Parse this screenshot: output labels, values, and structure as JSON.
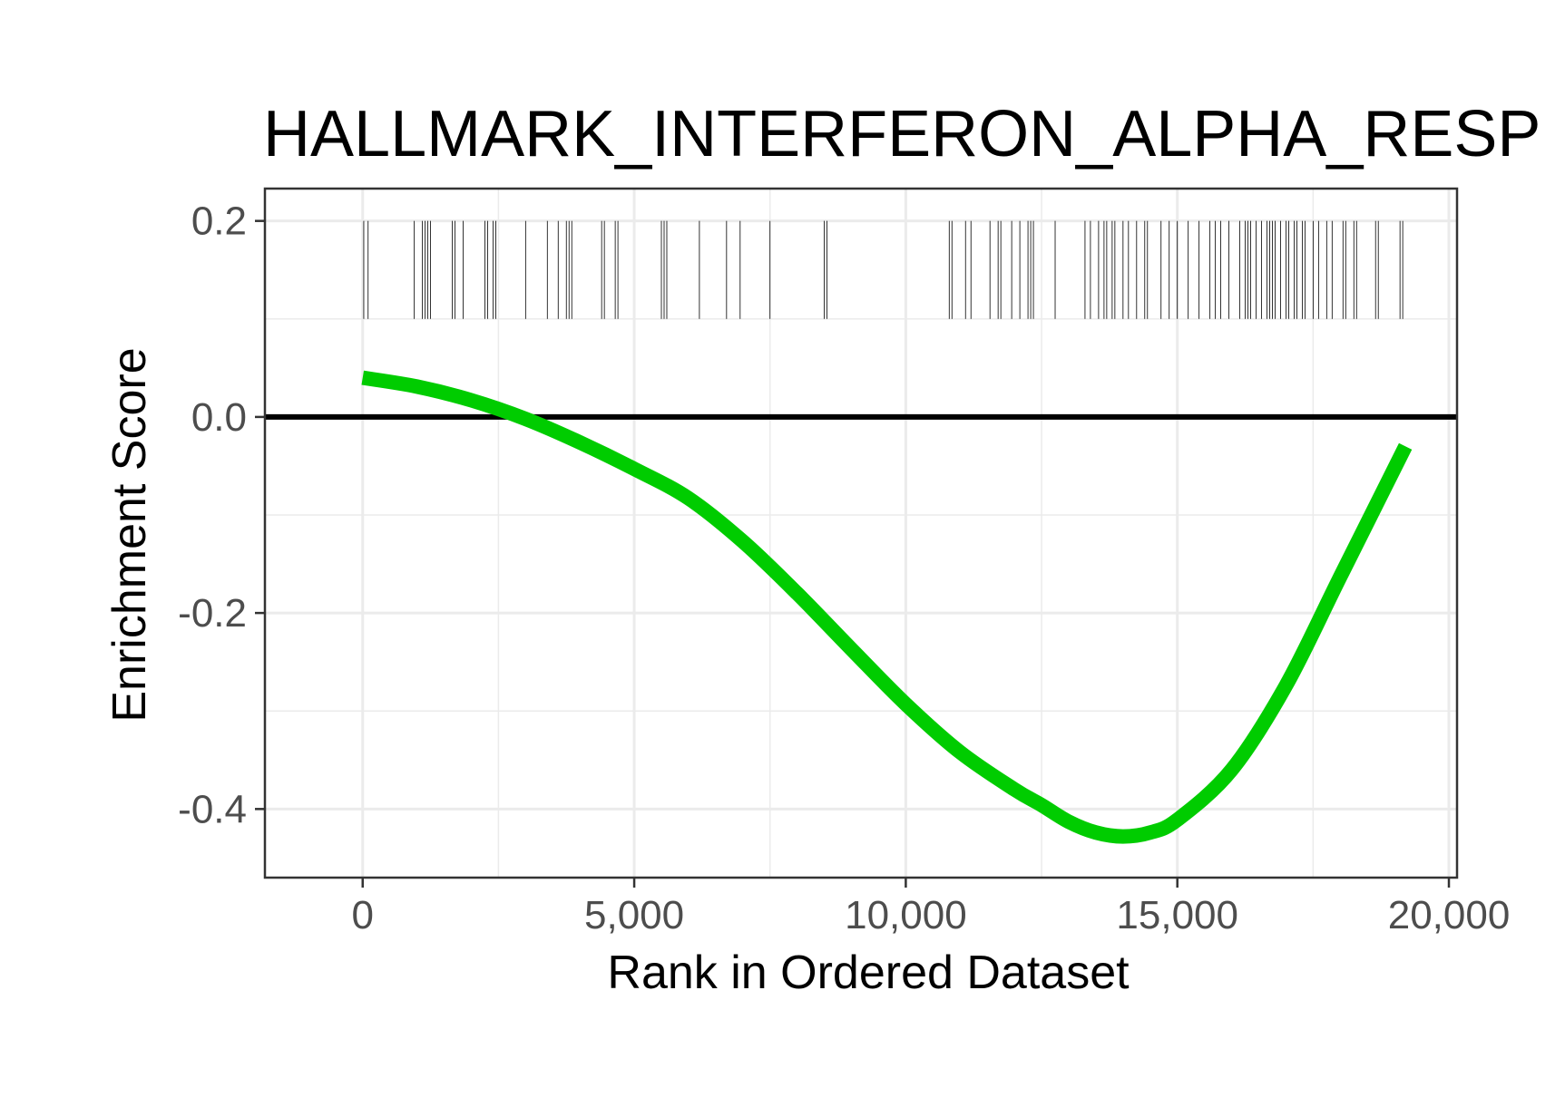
{
  "chart_data": {
    "type": "line",
    "title": "HALLMARK_INTERFERON_ALPHA_RESP",
    "xlabel": "Rank in Ordered Dataset",
    "ylabel": "Enrichment Score",
    "xlim": [
      -1800,
      20150
    ],
    "ylim": [
      -0.47,
      0.233
    ],
    "x_ticks": [
      0,
      5000,
      10000,
      15000,
      20000
    ],
    "x_tick_labels": [
      "0",
      "5,000",
      "10,000",
      "15,000",
      "20,000"
    ],
    "y_ticks": [
      -0.4,
      -0.2,
      0.0,
      0.2
    ],
    "y_tick_labels": [
      "-0.4",
      "-0.2",
      "0.0",
      "0.2"
    ],
    "y_minor_ticks": [
      -0.3,
      -0.1,
      0.1
    ],
    "x_minor_ticks": [
      2500,
      7500,
      12500,
      17500
    ],
    "grid": true,
    "reference_line": {
      "y": 0,
      "color": "#000000"
    },
    "series": [
      {
        "color": "#00cc00",
        "x": [
          0,
          1000,
          2000,
          3000,
          4000,
          5000,
          6000,
          7000,
          8000,
          9000,
          10000,
          11000,
          12000,
          12500,
          13000,
          13500,
          14000,
          14500,
          15000,
          16000,
          17000,
          18000,
          19200
        ],
        "y": [
          0.04,
          0.031,
          0.017,
          -0.002,
          -0.026,
          -0.053,
          -0.083,
          -0.127,
          -0.18,
          -0.237,
          -0.293,
          -0.342,
          -0.38,
          -0.396,
          -0.413,
          -0.424,
          -0.428,
          -0.424,
          -0.411,
          -0.36,
          -0.274,
          -0.163,
          -0.03
        ]
      }
    ],
    "gene_hits": {
      "y_range": [
        0.1,
        0.2
      ],
      "color": "#000000",
      "positions": [
        20,
        100,
        950,
        1100,
        1150,
        1200,
        1250,
        1650,
        1700,
        1850,
        2250,
        2300,
        2400,
        2450,
        3000,
        3400,
        3600,
        3750,
        3800,
        3850,
        4400,
        4450,
        4650,
        4700,
        5500,
        5550,
        5600,
        6200,
        6700,
        6950,
        7500,
        8500,
        8550,
        10800,
        10850,
        11100,
        11200,
        11550,
        11700,
        11750,
        11950,
        12100,
        12250,
        12300,
        12350,
        12750,
        13300,
        13400,
        13550,
        13650,
        13700,
        13800,
        13850,
        14000,
        14100,
        14250,
        14400,
        14450,
        14700,
        14850,
        15000,
        15200,
        15400,
        15600,
        15700,
        15800,
        15950,
        16150,
        16250,
        16300,
        16350,
        16450,
        16550,
        16650,
        16700,
        16750,
        16800,
        16900,
        17000,
        17050,
        17150,
        17200,
        17300,
        17350,
        17500,
        17600,
        17750,
        17850,
        18050,
        18100,
        18250,
        18300,
        18650,
        18700,
        19100,
        19150
      ]
    }
  }
}
